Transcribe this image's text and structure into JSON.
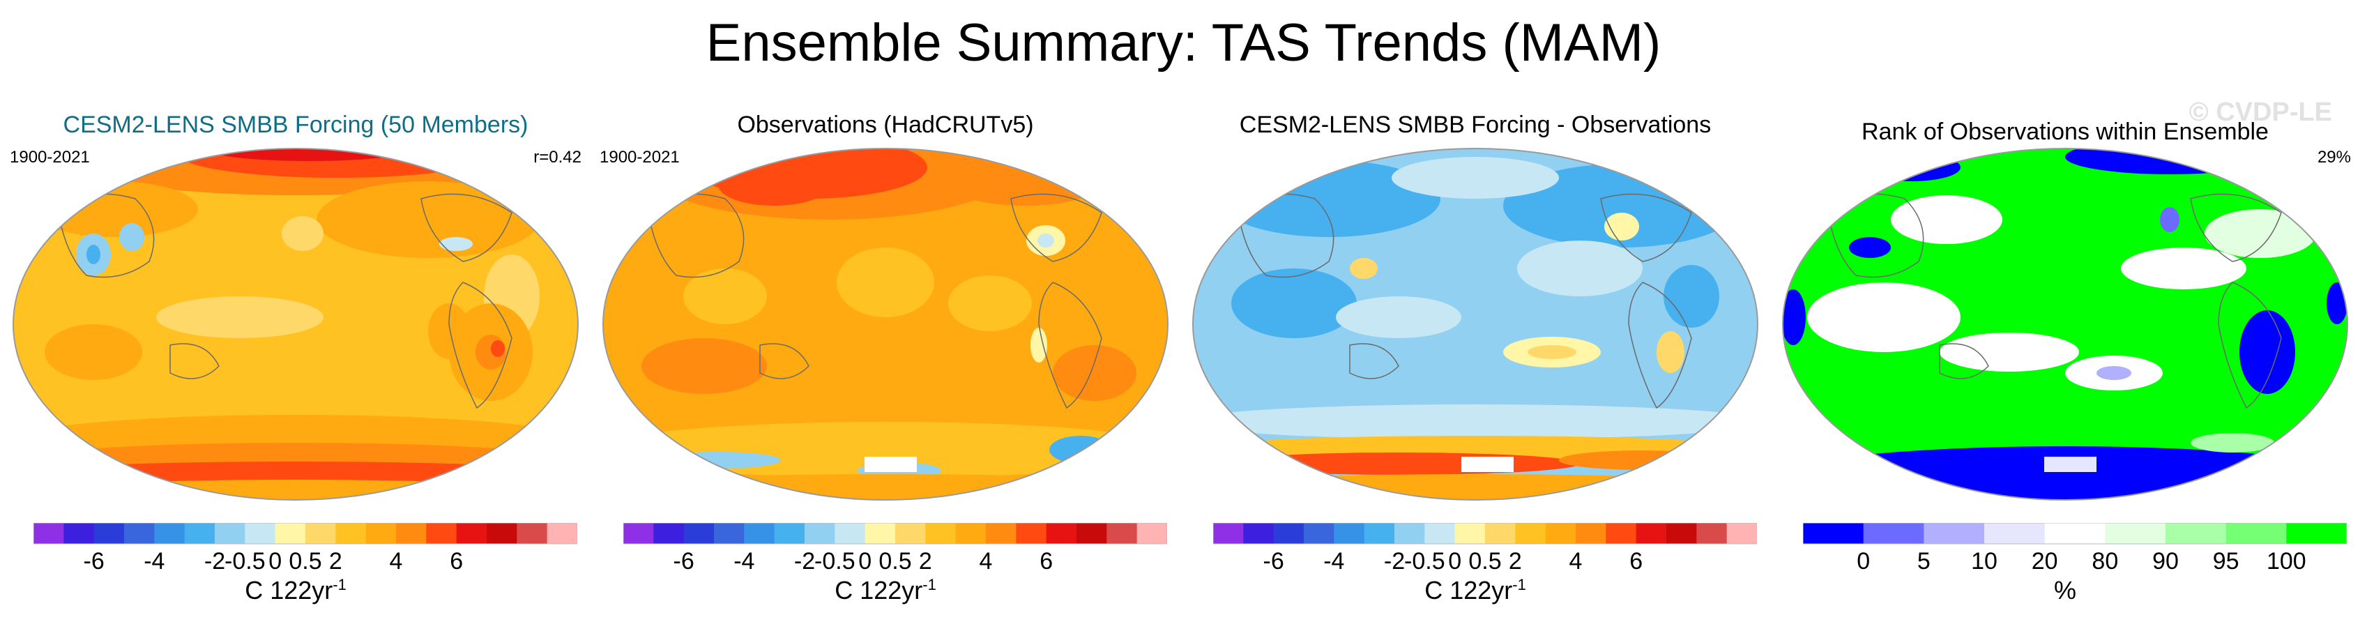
{
  "title": "Ensemble Summary: TAS Trends (MAM)",
  "watermark": "© CVDP-LE",
  "colors": {
    "trend_scale": [
      "#8f2fe6",
      "#3d1fe0",
      "#2a3dd9",
      "#3a66dd",
      "#3592e6",
      "#47b0ef",
      "#92d0f2",
      "#c8e7f4",
      "#fff6a8",
      "#ffd86a",
      "#ffc222",
      "#ffaa10",
      "#ff8b11",
      "#ff4a12",
      "#e71313",
      "#c80a0a",
      "#d94b4b",
      "#ffb3b3"
    ],
    "rank_scale": [
      "#0000ff",
      "#6b6bff",
      "#b0b0ff",
      "#e6e6ff",
      "#ffffff",
      "#e2ffe2",
      "#a8ffa8",
      "#74ff74",
      "#00ff00"
    ]
  },
  "panels": [
    {
      "title": "CESM2-LENS SMBB Forcing (50 Members)",
      "left_label": "1900-2021",
      "right_label": "r=0.42",
      "colorbar": {
        "ticks": [
          "-6",
          "-4",
          "-2",
          "-0.5",
          "0",
          "0.5",
          "2",
          "4",
          "6"
        ],
        "label": "C 122yr",
        "label_sup": "-1"
      }
    },
    {
      "title": "Observations (HadCRUTv5)",
      "left_label": "1900-2021",
      "right_label": "",
      "colorbar": {
        "ticks": [
          "-6",
          "-4",
          "-2",
          "-0.5",
          "0",
          "0.5",
          "2",
          "4",
          "6"
        ],
        "label": "C 122yr",
        "label_sup": "-1"
      }
    },
    {
      "title": "CESM2-LENS SMBB Forcing - Observations",
      "left_label": "",
      "right_label": "",
      "colorbar": {
        "ticks": [
          "-6",
          "-4",
          "-2",
          "-0.5",
          "0",
          "0.5",
          "2",
          "4",
          "6"
        ],
        "label": "C 122yr",
        "label_sup": "-1"
      }
    },
    {
      "title": "Rank of Observations within Ensemble",
      "left_label": "",
      "right_label": "29%",
      "colorbar": {
        "ticks": [
          "0",
          "5",
          "10",
          "20",
          "80",
          "90",
          "95",
          "100"
        ],
        "label": "%",
        "label_sup": ""
      }
    }
  ],
  "chart_data": [
    {
      "type": "heatmap",
      "title": "CESM2-LENS SMBB Forcing (50 Members)",
      "period": "1900-2021",
      "pattern_correlation": 0.42,
      "variable": "TAS trend, MAM",
      "units": "C 122yr-1",
      "levels": [
        -8,
        -6,
        -5,
        -4,
        -3,
        -2,
        -1,
        -0.5,
        0,
        0.5,
        1,
        2,
        3,
        4,
        5,
        6,
        8
      ],
      "field_summary": "widespread warming 0.5-2, strongest in high northern latitudes (4-6) and Antarctic coast; small cooling patches over central Asia"
    },
    {
      "type": "heatmap",
      "title": "Observations (HadCRUTv5)",
      "period": "1900-2021",
      "variable": "TAS trend, MAM",
      "units": "C 122yr-1",
      "levels": [
        -8,
        -6,
        -5,
        -4,
        -3,
        -2,
        -1,
        -0.5,
        0,
        0.5,
        1,
        2,
        3,
        4,
        5,
        6,
        8
      ],
      "field_summary": "warming 1-3 nearly everywhere, strongest over northern Eurasia; Southern Ocean weaker with cooling near Antarctica"
    },
    {
      "type": "heatmap",
      "title": "CESM2-LENS SMBB Forcing - Observations",
      "variable": "TAS trend difference, MAM",
      "units": "C 122yr-1",
      "levels": [
        -8,
        -6,
        -5,
        -4,
        -3,
        -2,
        -1,
        -0.5,
        0,
        0.5,
        1,
        2,
        3,
        4,
        5,
        6,
        8
      ],
      "field_summary": "model mostly cooler than observations (-0.5 to -2) over oceans and continents; model warmer along Antarctic coast"
    },
    {
      "type": "heatmap",
      "title": "Rank of Observations within Ensemble",
      "units": "%",
      "levels": [
        0,
        5,
        10,
        20,
        80,
        90,
        95,
        100
      ],
      "summary_value": "29%",
      "field_summary": "observations rank above 95% over most oceans and continents; below 5% near Antarctica and scattered northern patches"
    }
  ]
}
